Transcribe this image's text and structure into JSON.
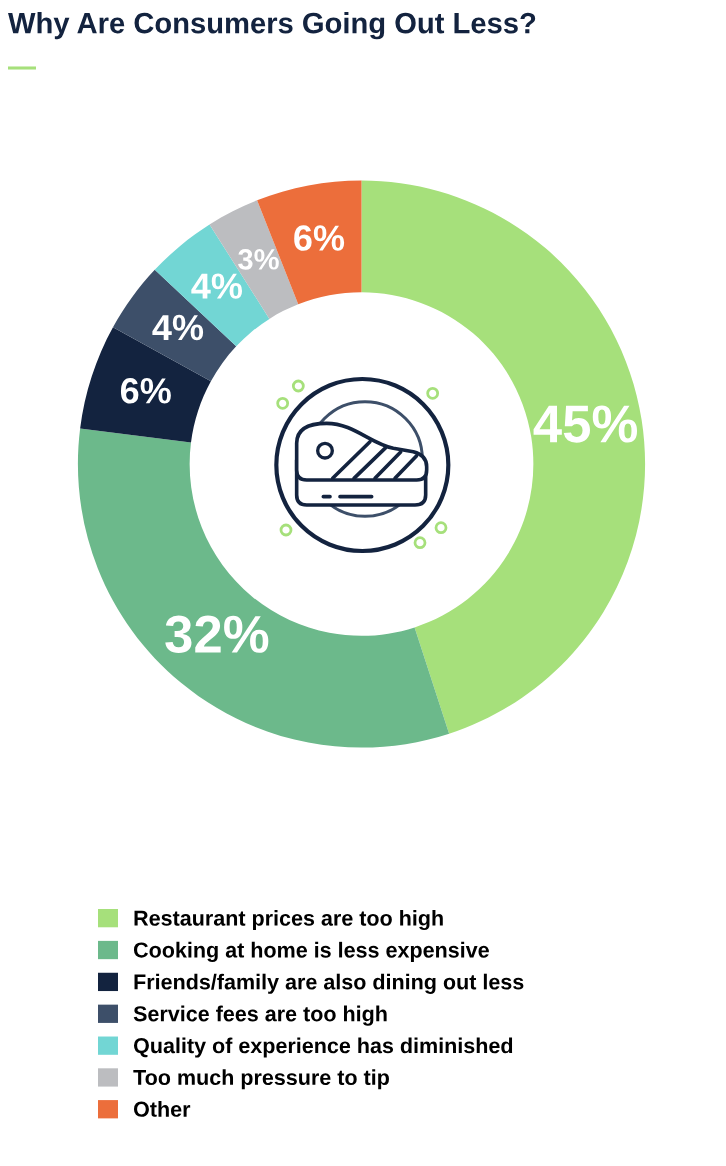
{
  "chart_data": {
    "type": "donut",
    "title": "Why Are Consumers Going Out Less?",
    "categories": [
      "Restaurant prices are too high",
      "Cooking at home is less expensive",
      "Friends/family are also dining out less",
      "Service fees are too high",
      "Quality of experience has diminished",
      "Too much pressure to tip",
      "Other"
    ],
    "values": [
      45,
      32,
      6,
      4,
      4,
      3,
      6
    ],
    "colors": [
      "#a6e07b",
      "#6cb98b",
      "#13233f",
      "#3d4f69",
      "#72d6d4",
      "#bcbdc0",
      "#ec6e3b"
    ],
    "value_labels": [
      "45%",
      "32%",
      "6%",
      "4%",
      "4%",
      "3%",
      "6%"
    ],
    "legend": "bottom"
  }
}
